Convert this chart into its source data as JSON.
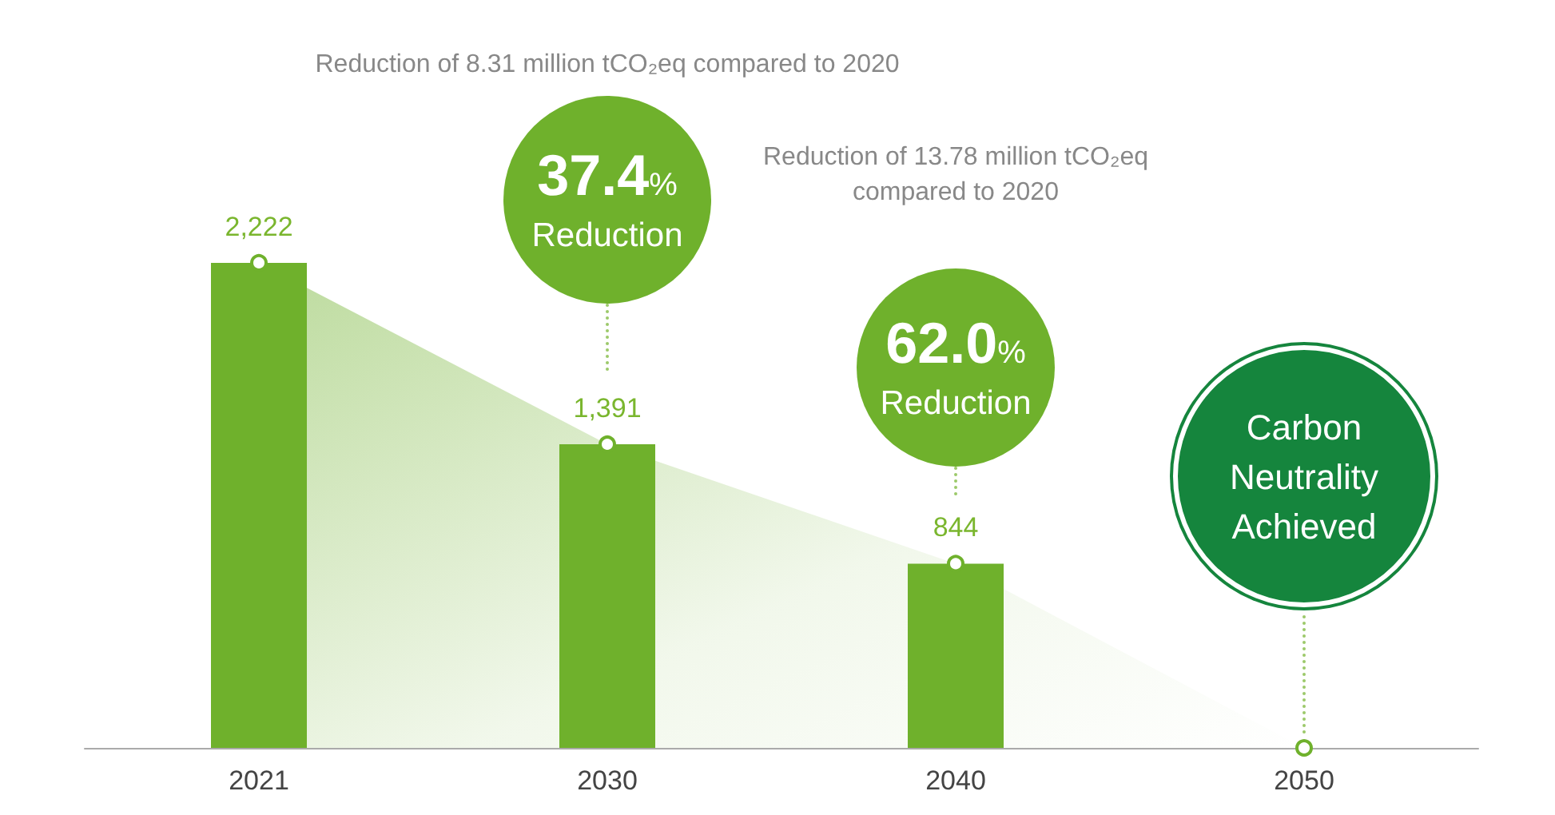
{
  "chart_data": {
    "type": "bar",
    "categories": [
      "2021",
      "2030",
      "2040",
      "2050"
    ],
    "series": [
      {
        "color": "#6fb12c",
        "values": [
          2222,
          1391,
          844,
          null
        ],
        "value_labels": [
          "2,222",
          "1,391",
          "844",
          null
        ]
      },
      {
        "type": "area",
        "color": "#6fb12c",
        "values": [
          2222,
          1391,
          844,
          0
        ]
      }
    ],
    "annotations": [
      "Reduction of 8.31 million tCO₂eq compared to 2020",
      "37.4% Reduction",
      "Reduction of 13.78 million tCO₂eq compared to 2020",
      "62.0% Reduction",
      "Carbon Neutrality Achieved"
    ],
    "marker": "circle",
    "tick_labels": "x"
  }
}
